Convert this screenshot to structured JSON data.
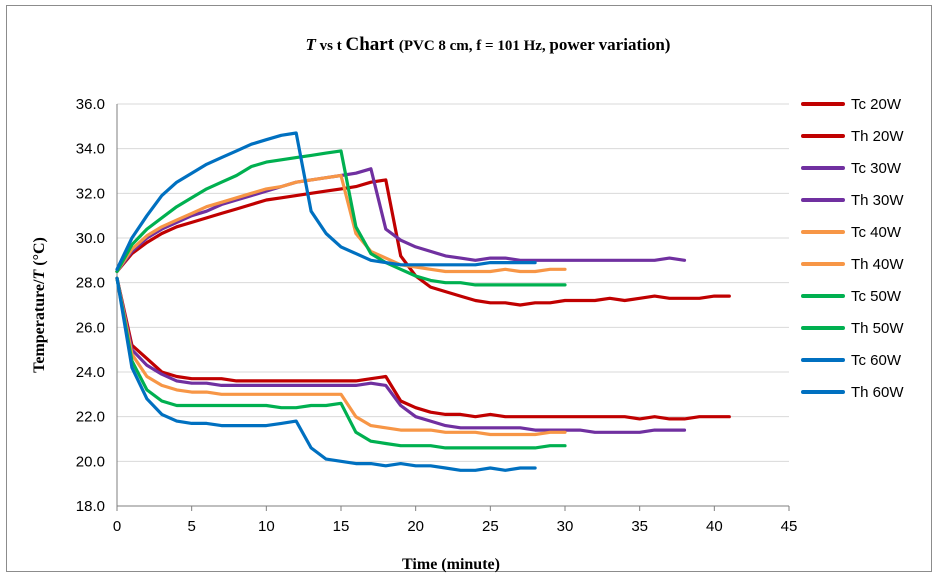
{
  "chart_data": {
    "type": "line",
    "title": {
      "t_symbol": "T",
      "vs": " vs t ",
      "chart_word": "Chart ",
      "params": "(PVC 8 cm, f = 101 Hz, ",
      "power": "power variation)"
    },
    "xlabel": "Time (minute)",
    "ylabel": {
      "main": "Temperature/",
      "t_symbol": "T",
      "unit": " (°C)"
    },
    "xlim": [
      0,
      45
    ],
    "ylim": [
      18.0,
      36.0
    ],
    "x_ticks": [
      "0",
      "5",
      "10",
      "15",
      "20",
      "25",
      "30",
      "35",
      "40",
      "45"
    ],
    "y_ticks": [
      "18.0",
      "20.0",
      "22.0",
      "24.0",
      "26.0",
      "28.0",
      "30.0",
      "32.0",
      "34.0",
      "36.0"
    ],
    "legend_position": "right",
    "colors": {
      "20W": "#c00000",
      "30W": "#7030a0",
      "40W": "#f79646",
      "50W": "#00b050",
      "60W": "#0070c0"
    },
    "series": [
      {
        "name": "Tc 20W",
        "color": "#c00000",
        "x": [
          0,
          1,
          2,
          3,
          4,
          5,
          6,
          7,
          8,
          9,
          10,
          11,
          12,
          13,
          14,
          15,
          16,
          17,
          18,
          19,
          20,
          21,
          22,
          23,
          24,
          25,
          26,
          27,
          28,
          29,
          30,
          31,
          32,
          33,
          34,
          35,
          36,
          37,
          38,
          39,
          40,
          41
        ],
        "y": [
          28.2,
          25.2,
          24.6,
          24.0,
          23.8,
          23.7,
          23.7,
          23.7,
          23.6,
          23.6,
          23.6,
          23.6,
          23.6,
          23.6,
          23.6,
          23.6,
          23.6,
          23.7,
          23.8,
          22.7,
          22.4,
          22.2,
          22.1,
          22.1,
          22.0,
          22.1,
          22.0,
          22.0,
          22.0,
          22.0,
          22.0,
          22.0,
          22.0,
          22.0,
          22.0,
          21.9,
          22.0,
          21.9,
          21.9,
          22.0,
          22.0,
          22.0
        ]
      },
      {
        "name": "Th 20W",
        "color": "#c00000",
        "x": [
          0,
          1,
          2,
          3,
          4,
          5,
          6,
          7,
          8,
          9,
          10,
          11,
          12,
          13,
          14,
          15,
          16,
          17,
          18,
          19,
          20,
          21,
          22,
          23,
          24,
          25,
          26,
          27,
          28,
          29,
          30,
          31,
          32,
          33,
          34,
          35,
          36,
          37,
          38,
          39,
          40,
          41
        ],
        "y": [
          28.5,
          29.3,
          29.8,
          30.2,
          30.5,
          30.7,
          30.9,
          31.1,
          31.3,
          31.5,
          31.7,
          31.8,
          31.9,
          32.0,
          32.1,
          32.2,
          32.3,
          32.5,
          32.6,
          29.2,
          28.3,
          27.8,
          27.6,
          27.4,
          27.2,
          27.1,
          27.1,
          27.0,
          27.1,
          27.1,
          27.2,
          27.2,
          27.2,
          27.3,
          27.2,
          27.3,
          27.4,
          27.3,
          27.3,
          27.3,
          27.4,
          27.4
        ]
      },
      {
        "name": "Tc 30W",
        "color": "#7030a0",
        "x": [
          0,
          1,
          2,
          3,
          4,
          5,
          6,
          7,
          8,
          9,
          10,
          11,
          12,
          13,
          14,
          15,
          16,
          17,
          18,
          19,
          20,
          21,
          22,
          23,
          24,
          25,
          26,
          27,
          28,
          29,
          30,
          31,
          32,
          33,
          34,
          35,
          36,
          37,
          38
        ],
        "y": [
          28.2,
          25.0,
          24.3,
          23.9,
          23.6,
          23.5,
          23.5,
          23.4,
          23.4,
          23.4,
          23.4,
          23.4,
          23.4,
          23.4,
          23.4,
          23.4,
          23.4,
          23.5,
          23.4,
          22.5,
          22.0,
          21.8,
          21.6,
          21.5,
          21.5,
          21.5,
          21.5,
          21.5,
          21.4,
          21.4,
          21.4,
          21.4,
          21.3,
          21.3,
          21.3,
          21.3,
          21.4,
          21.4,
          21.4
        ]
      },
      {
        "name": "Th 30W",
        "color": "#7030a0",
        "x": [
          0,
          1,
          2,
          3,
          4,
          5,
          6,
          7,
          8,
          9,
          10,
          11,
          12,
          13,
          14,
          15,
          16,
          17,
          18,
          19,
          20,
          21,
          22,
          23,
          24,
          25,
          26,
          27,
          28,
          29,
          30,
          31,
          32,
          33,
          34,
          35,
          36,
          37,
          38
        ],
        "y": [
          28.5,
          29.4,
          30.0,
          30.4,
          30.7,
          31.0,
          31.2,
          31.5,
          31.7,
          31.9,
          32.1,
          32.3,
          32.5,
          32.6,
          32.7,
          32.8,
          32.9,
          33.1,
          30.4,
          29.9,
          29.6,
          29.4,
          29.2,
          29.1,
          29.0,
          29.1,
          29.1,
          29.0,
          29.0,
          29.0,
          29.0,
          29.0,
          29.0,
          29.0,
          29.0,
          29.0,
          29.0,
          29.1,
          29.0
        ]
      },
      {
        "name": "Tc 40W",
        "color": "#f79646",
        "x": [
          0,
          1,
          2,
          3,
          4,
          5,
          6,
          7,
          8,
          9,
          10,
          11,
          12,
          13,
          14,
          15,
          16,
          17,
          18,
          19,
          20,
          21,
          22,
          23,
          24,
          25,
          26,
          27,
          28,
          29,
          30
        ],
        "y": [
          28.2,
          24.8,
          23.8,
          23.4,
          23.2,
          23.1,
          23.1,
          23.0,
          23.0,
          23.0,
          23.0,
          23.0,
          23.0,
          23.0,
          23.0,
          23.0,
          22.0,
          21.6,
          21.5,
          21.4,
          21.4,
          21.4,
          21.3,
          21.3,
          21.3,
          21.2,
          21.2,
          21.2,
          21.2,
          21.3,
          21.3
        ]
      },
      {
        "name": "Th 40W",
        "color": "#f79646",
        "x": [
          0,
          1,
          2,
          3,
          4,
          5,
          6,
          7,
          8,
          9,
          10,
          11,
          12,
          13,
          14,
          15,
          16,
          17,
          18,
          19,
          20,
          21,
          22,
          23,
          24,
          25,
          26,
          27,
          28,
          29,
          30
        ],
        "y": [
          28.5,
          29.5,
          30.1,
          30.5,
          30.8,
          31.1,
          31.4,
          31.6,
          31.8,
          32.0,
          32.2,
          32.3,
          32.5,
          32.6,
          32.7,
          32.8,
          30.2,
          29.4,
          29.1,
          28.8,
          28.7,
          28.6,
          28.5,
          28.5,
          28.5,
          28.5,
          28.6,
          28.5,
          28.5,
          28.6,
          28.6
        ]
      },
      {
        "name": "Tc 50W",
        "color": "#00b050",
        "x": [
          0,
          1,
          2,
          3,
          4,
          5,
          6,
          7,
          8,
          9,
          10,
          11,
          12,
          13,
          14,
          15,
          16,
          17,
          18,
          19,
          20,
          21,
          22,
          23,
          24,
          25,
          26,
          27,
          28,
          29,
          30
        ],
        "y": [
          28.2,
          24.5,
          23.2,
          22.7,
          22.5,
          22.5,
          22.5,
          22.5,
          22.5,
          22.5,
          22.5,
          22.4,
          22.4,
          22.5,
          22.5,
          22.6,
          21.3,
          20.9,
          20.8,
          20.7,
          20.7,
          20.7,
          20.6,
          20.6,
          20.6,
          20.6,
          20.6,
          20.6,
          20.6,
          20.7,
          20.7
        ]
      },
      {
        "name": "Th 50W",
        "color": "#00b050",
        "x": [
          0,
          1,
          2,
          3,
          4,
          5,
          6,
          7,
          8,
          9,
          10,
          11,
          12,
          13,
          14,
          15,
          16,
          17,
          18,
          19,
          20,
          21,
          22,
          23,
          24,
          25,
          26,
          27,
          28,
          29,
          30
        ],
        "y": [
          28.5,
          29.7,
          30.4,
          30.9,
          31.4,
          31.8,
          32.2,
          32.5,
          32.8,
          33.2,
          33.4,
          33.5,
          33.6,
          33.7,
          33.8,
          33.9,
          30.5,
          29.3,
          28.9,
          28.6,
          28.3,
          28.1,
          28.0,
          28.0,
          27.9,
          27.9,
          27.9,
          27.9,
          27.9,
          27.9,
          27.9
        ]
      },
      {
        "name": "Tc 60W",
        "color": "#0070c0",
        "x": [
          0,
          1,
          2,
          3,
          4,
          5,
          6,
          7,
          8,
          9,
          10,
          11,
          12,
          13,
          14,
          15,
          16,
          17,
          18,
          19,
          20,
          21,
          22,
          23,
          24,
          25,
          26,
          27,
          28
        ],
        "y": [
          28.2,
          24.2,
          22.8,
          22.1,
          21.8,
          21.7,
          21.7,
          21.6,
          21.6,
          21.6,
          21.6,
          21.7,
          21.8,
          20.6,
          20.1,
          20.0,
          19.9,
          19.9,
          19.8,
          19.9,
          19.8,
          19.8,
          19.7,
          19.6,
          19.6,
          19.7,
          19.6,
          19.7,
          19.7
        ]
      },
      {
        "name": "Th 60W",
        "color": "#0070c0",
        "x": [
          0,
          1,
          2,
          3,
          4,
          5,
          6,
          7,
          8,
          9,
          10,
          11,
          12,
          13,
          14,
          15,
          16,
          17,
          18,
          19,
          20,
          21,
          22,
          23,
          24,
          25,
          26,
          27,
          28
        ],
        "y": [
          28.6,
          30.0,
          31.0,
          31.9,
          32.5,
          32.9,
          33.3,
          33.6,
          33.9,
          34.2,
          34.4,
          34.6,
          34.7,
          31.2,
          30.2,
          29.6,
          29.3,
          29.0,
          28.9,
          28.8,
          28.8,
          28.8,
          28.8,
          28.8,
          28.8,
          28.9,
          28.9,
          28.9,
          28.9
        ]
      }
    ]
  }
}
